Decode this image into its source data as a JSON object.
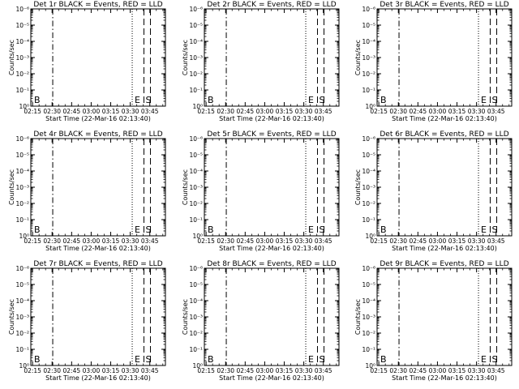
{
  "chart_data": {
    "type": "line",
    "layout": "3x3 grid",
    "shared": {
      "xlabel": "Start Time (22-Mar-16 02:13:40)",
      "ylabel": "Counts/sec",
      "y_scale": "log",
      "y_ticks": [
        "10⁰",
        "10⁻¹",
        "10⁻²",
        "10⁻³",
        "10⁻⁴",
        "10⁻⁵",
        "10⁻⁶"
      ],
      "x_ticks": [
        "02:15",
        "02:30",
        "02:45",
        "03:00",
        "03:15",
        "03:30",
        "03:45"
      ],
      "x_tick_minutes": [
        15,
        30,
        45,
        60,
        75,
        90,
        105
      ],
      "xlim_minutes": [
        13.67,
        117
      ],
      "series_legend": "BLACK = Events, RED = LLD",
      "series": [
        {
          "name": "Events",
          "color": "#000000",
          "values": []
        },
        {
          "name": "LLD",
          "color": "#ff0000",
          "values": []
        }
      ],
      "markers": {
        "b_line_minute": 30.5,
        "e_dotted_minute": 91.5,
        "s_dash1_minute": 100.5,
        "s_dash2_minute": 105.5,
        "labels": {
          "b": "B",
          "e": "E",
          "s": "S"
        }
      }
    },
    "panels": [
      {
        "title": "Det 1r BLACK = Events, RED = LLD"
      },
      {
        "title": "Det 2r BLACK = Events, RED = LLD"
      },
      {
        "title": "Det 3r BLACK = Events, RED = LLD"
      },
      {
        "title": "Det 4r BLACK = Events, RED = LLD"
      },
      {
        "title": "Det 5r BLACK = Events, RED = LLD"
      },
      {
        "title": "Det 6r BLACK = Events, RED = LLD"
      },
      {
        "title": "Det 7r BLACK = Events, RED = LLD"
      },
      {
        "title": "Det 8r BLACK = Events, RED = LLD"
      },
      {
        "title": "Det 9r BLACK = Events, RED = LLD"
      }
    ]
  }
}
